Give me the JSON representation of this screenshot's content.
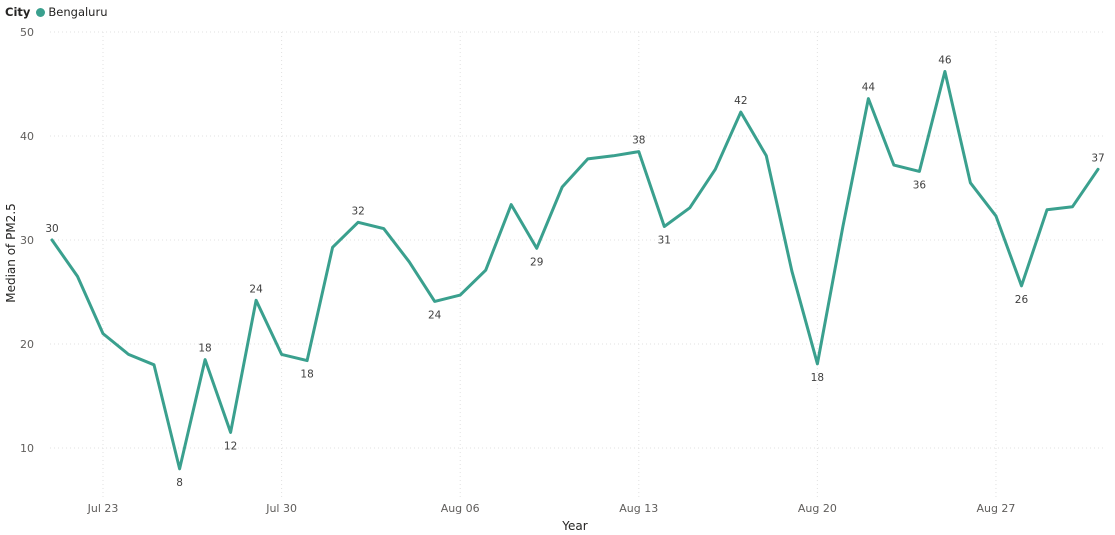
{
  "legend": {
    "title": "City",
    "entry": "Bengaluru",
    "color": "#3aa08e"
  },
  "chart_data": {
    "type": "line",
    "xlabel": "Year",
    "ylabel": "Median of PM2.5",
    "ylim": [
      5,
      50
    ],
    "yticks": [
      10,
      20,
      30,
      40,
      50
    ],
    "x_range": [
      "2024-07-21",
      "2024-08-31"
    ],
    "xticks": [
      {
        "date": "2024-07-23",
        "label": "Jul 23"
      },
      {
        "date": "2024-07-30",
        "label": "Jul 30"
      },
      {
        "date": "2024-08-06",
        "label": "Aug 06"
      },
      {
        "date": "2024-08-13",
        "label": "Aug 13"
      },
      {
        "date": "2024-08-20",
        "label": "Aug 20"
      },
      {
        "date": "2024-08-27",
        "label": "Aug 27"
      }
    ],
    "grid": true,
    "legend_position": "top-left",
    "series": [
      {
        "name": "Bengaluru",
        "color": "#3aa08e",
        "points": [
          {
            "x": "2024-07-21",
            "y": 30,
            "label": "30",
            "label_pos": "above"
          },
          {
            "x": "2024-07-22",
            "y": 26.5
          },
          {
            "x": "2024-07-23",
            "y": 21
          },
          {
            "x": "2024-07-24",
            "y": 19
          },
          {
            "x": "2024-07-25",
            "y": 18
          },
          {
            "x": "2024-07-26",
            "y": 8,
            "label": "8",
            "label_pos": "below"
          },
          {
            "x": "2024-07-27",
            "y": 18.5,
            "label": "18",
            "label_pos": "above"
          },
          {
            "x": "2024-07-28",
            "y": 11.5,
            "label": "12",
            "label_pos": "below"
          },
          {
            "x": "2024-07-29",
            "y": 24.2,
            "label": "24",
            "label_pos": "above"
          },
          {
            "x": "2024-07-30",
            "y": 19
          },
          {
            "x": "2024-07-31",
            "y": 18.4,
            "label": "18",
            "label_pos": "below"
          },
          {
            "x": "2024-08-01",
            "y": 29.3
          },
          {
            "x": "2024-08-02",
            "y": 31.7,
            "label": "32",
            "label_pos": "above"
          },
          {
            "x": "2024-08-03",
            "y": 31.1
          },
          {
            "x": "2024-08-04",
            "y": 27.9
          },
          {
            "x": "2024-08-05",
            "y": 24.1,
            "label": "24",
            "label_pos": "below"
          },
          {
            "x": "2024-08-06",
            "y": 24.7
          },
          {
            "x": "2024-08-07",
            "y": 27.1
          },
          {
            "x": "2024-08-08",
            "y": 33.4
          },
          {
            "x": "2024-08-09",
            "y": 29.2,
            "label": "29",
            "label_pos": "below"
          },
          {
            "x": "2024-08-10",
            "y": 35.1
          },
          {
            "x": "2024-08-11",
            "y": 37.8
          },
          {
            "x": "2024-08-12",
            "y": 38.1
          },
          {
            "x": "2024-08-13",
            "y": 38.5,
            "label": "38",
            "label_pos": "above"
          },
          {
            "x": "2024-08-14",
            "y": 31.3,
            "label": "31",
            "label_pos": "below"
          },
          {
            "x": "2024-08-15",
            "y": 33.1
          },
          {
            "x": "2024-08-16",
            "y": 36.8
          },
          {
            "x": "2024-08-17",
            "y": 42.3,
            "label": "42",
            "label_pos": "above"
          },
          {
            "x": "2024-08-18",
            "y": 38.1
          },
          {
            "x": "2024-08-19",
            "y": 27
          },
          {
            "x": "2024-08-20",
            "y": 18.1,
            "label": "18",
            "label_pos": "below"
          },
          {
            "x": "2024-08-21",
            "y": 31.3
          },
          {
            "x": "2024-08-22",
            "y": 43.6,
            "label": "44",
            "label_pos": "above"
          },
          {
            "x": "2024-08-23",
            "y": 37.2
          },
          {
            "x": "2024-08-24",
            "y": 36.6,
            "label": "36",
            "label_pos": "below"
          },
          {
            "x": "2024-08-25",
            "y": 46.2,
            "label": "46",
            "label_pos": "above"
          },
          {
            "x": "2024-08-26",
            "y": 35.5
          },
          {
            "x": "2024-08-27",
            "y": 32.3
          },
          {
            "x": "2024-08-28",
            "y": 25.6,
            "label": "26",
            "label_pos": "below"
          },
          {
            "x": "2024-08-29",
            "y": 32.9
          },
          {
            "x": "2024-08-30",
            "y": 33.2
          },
          {
            "x": "2024-08-31",
            "y": 36.8,
            "label": "37",
            "label_pos": "above"
          }
        ]
      }
    ]
  }
}
